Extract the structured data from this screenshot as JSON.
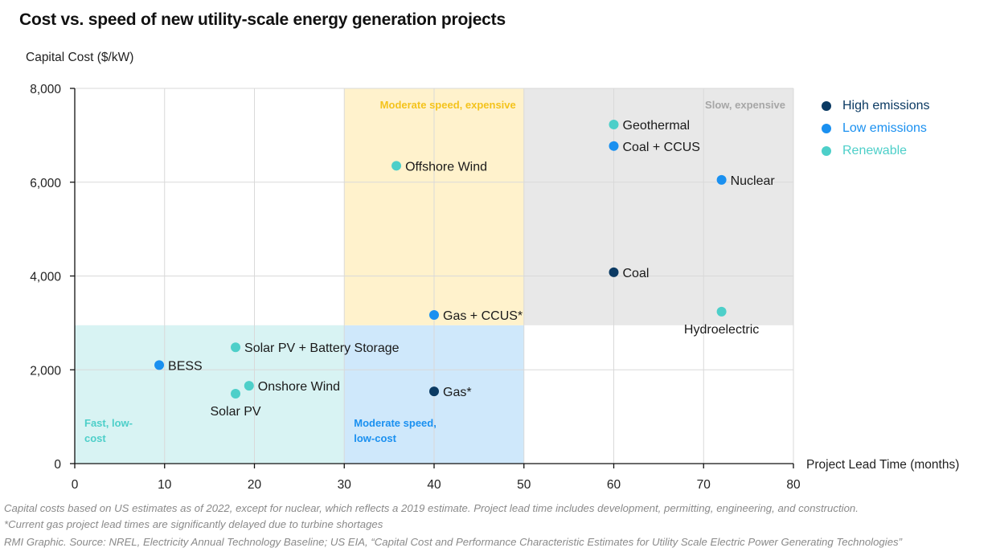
{
  "title": "Cost vs. speed of new utility-scale energy generation projects",
  "colors": {
    "high": "#0b3a63",
    "low": "#1a90f0",
    "renewable": "#4dcfc9",
    "grid": "#d9d9d9",
    "axis": "#111111",
    "region_fast_low": "#d8f3f3",
    "region_mod_low": "#cfe8fb",
    "region_mod_exp": "#fff2cc",
    "region_slow_exp": "#e8e8e8",
    "label_fast_low": "#4dcfc9",
    "label_mod_low": "#1a90f0",
    "label_mod_exp": "#f4c31d",
    "label_slow_exp": "#a6a6a6"
  },
  "legend": [
    {
      "key": "high",
      "label": "High emissions"
    },
    {
      "key": "low",
      "label": "Low emissions"
    },
    {
      "key": "renewable",
      "label": "Renewable"
    }
  ],
  "footnotes": [
    "Capital costs based on US estimates as of 2022, except for nuclear, which reflects a 2019 estimate. Project lead time includes development, permitting, engineering, and construction.",
    "*Current gas project lead times are significantly delayed due to turbine shortages",
    "RMI Graphic. Source: NREL, Electricity Annual Technology Baseline; US EIA, “Capital Cost and Performance Characteristic Estimates for Utility Scale Electric Power Generating Technologies”"
  ],
  "chart_data": {
    "type": "scatter",
    "title": "Cost vs. speed of new utility-scale energy generation projects",
    "xlabel": "Project Lead Time (months)",
    "ylabel": "Capital Cost ($/kW)",
    "xlim": [
      0,
      80
    ],
    "ylim": [
      0,
      8000
    ],
    "xticks": [
      0,
      10,
      20,
      30,
      40,
      50,
      60,
      70,
      80
    ],
    "yticks": [
      0,
      2000,
      4000,
      6000,
      8000
    ],
    "ytick_labels": [
      "0",
      "2,000",
      "4,000",
      "6,000",
      "8,000"
    ],
    "grid": true,
    "legend_position": "top-right",
    "regions": [
      {
        "name": "fast-low-cost",
        "label_lines": [
          "Fast, low-",
          "cost"
        ],
        "x": [
          0,
          30
        ],
        "y": [
          0,
          2950
        ],
        "color_key": "region_fast_low",
        "label_color_key": "label_fast_low",
        "label_anchor": "bottom-left"
      },
      {
        "name": "moderate-low-cost",
        "label_lines": [
          "Moderate speed,",
          "low-cost"
        ],
        "x": [
          30,
          50
        ],
        "y": [
          0,
          2950
        ],
        "color_key": "region_mod_low",
        "label_color_key": "label_mod_low",
        "label_anchor": "bottom-left"
      },
      {
        "name": "moderate-expensive",
        "label_lines": [
          "Moderate speed, expensive"
        ],
        "x": [
          30,
          50
        ],
        "y": [
          2950,
          8000
        ],
        "color_key": "region_mod_exp",
        "label_color_key": "label_mod_exp",
        "label_anchor": "top-right"
      },
      {
        "name": "slow-expensive",
        "label_lines": [
          "Slow, expensive"
        ],
        "x": [
          50,
          80
        ],
        "y": [
          2950,
          8000
        ],
        "color_key": "region_slow_exp",
        "label_color_key": "label_slow_exp",
        "label_anchor": "top-right"
      }
    ],
    "series": [
      {
        "name": "High emissions",
        "key": "high",
        "points": [
          {
            "label": "Gas*",
            "x": 40,
            "y": 1540,
            "label_pos": "right"
          },
          {
            "label": "Coal",
            "x": 60,
            "y": 4080,
            "label_pos": "right"
          }
        ]
      },
      {
        "name": "Low emissions",
        "key": "low",
        "points": [
          {
            "label": "BESS",
            "x": 9.4,
            "y": 2100,
            "label_pos": "right"
          },
          {
            "label": "Gas + CCUS*",
            "x": 40,
            "y": 3170,
            "label_pos": "right"
          },
          {
            "label": "Coal + CCUS",
            "x": 60,
            "y": 6770,
            "label_pos": "right"
          },
          {
            "label": "Nuclear",
            "x": 72,
            "y": 6050,
            "label_pos": "right"
          }
        ]
      },
      {
        "name": "Renewable",
        "key": "renewable",
        "points": [
          {
            "label": "Solar PV + Battery Storage",
            "x": 17.9,
            "y": 2480,
            "label_pos": "right"
          },
          {
            "label": "Onshore Wind",
            "x": 19.4,
            "y": 1660,
            "label_pos": "right"
          },
          {
            "label": "Solar PV",
            "x": 17.9,
            "y": 1490,
            "label_pos": "below"
          },
          {
            "label": "Offshore Wind",
            "x": 35.8,
            "y": 6350,
            "label_pos": "right"
          },
          {
            "label": "Geothermal",
            "x": 60,
            "y": 7230,
            "label_pos": "right"
          },
          {
            "label": "Hydroelectric",
            "x": 72,
            "y": 3240,
            "label_pos": "below"
          }
        ]
      }
    ]
  }
}
